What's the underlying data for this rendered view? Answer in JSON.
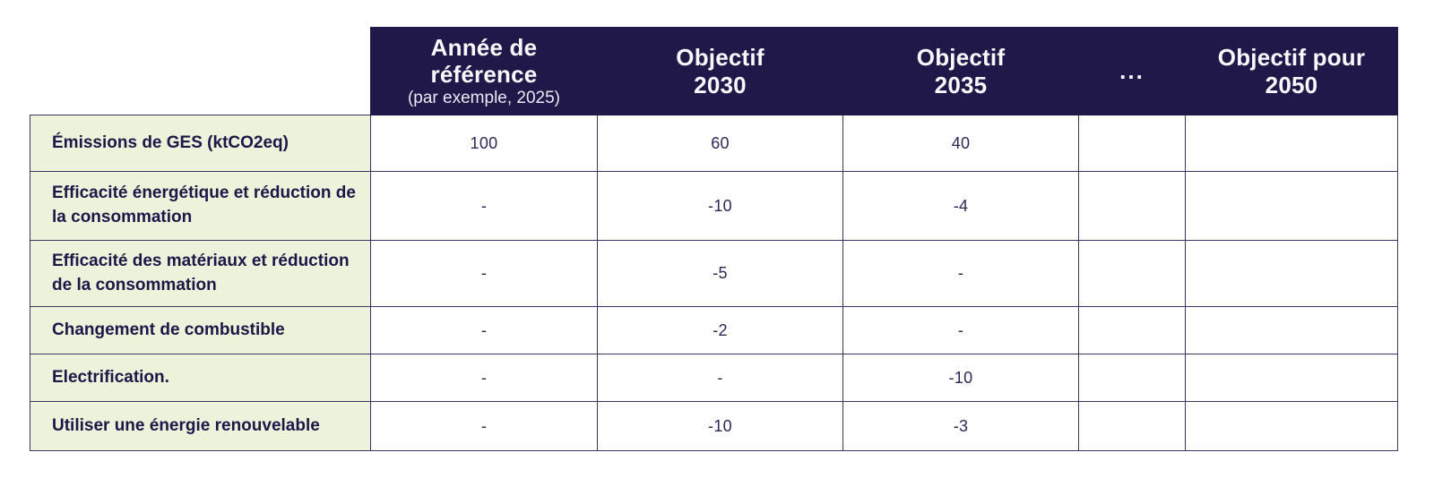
{
  "table": {
    "headers": [
      {
        "title": "Année de\nréférence",
        "subtitle": "(par exemple, 2025)"
      },
      {
        "title": "Objectif\n2030"
      },
      {
        "title": "Objectif\n2035"
      },
      {
        "title": "..."
      },
      {
        "title": "Objectif pour\n2050"
      }
    ],
    "rows": [
      {
        "label": "Émissions de GES (ktCO2eq)",
        "values": [
          "100",
          "60",
          "40",
          "",
          ""
        ]
      },
      {
        "label": "Efficacité énergétique et réduction de la consommation",
        "values": [
          "-",
          "-10",
          "-4",
          "",
          ""
        ]
      },
      {
        "label": "Efficacité des matériaux et réduction de la consommation",
        "values": [
          "-",
          "-5",
          "-",
          "",
          ""
        ]
      },
      {
        "label": "Changement de combustible",
        "values": [
          "-",
          "-2",
          "-",
          "",
          ""
        ]
      },
      {
        "label": "Electrification.",
        "values": [
          "-",
          "-",
          "-10",
          "",
          ""
        ]
      },
      {
        "label": "Utiliser une énergie renouvelable",
        "values": [
          "-",
          "-10",
          "-3",
          "",
          ""
        ]
      }
    ],
    "colors": {
      "header_bg": "#201849",
      "header_text": "#f8f7fb",
      "label_bg": "#edf2da",
      "label_text": "#1d1649",
      "value_text": "#2d2757",
      "border": "#3c3566"
    }
  }
}
